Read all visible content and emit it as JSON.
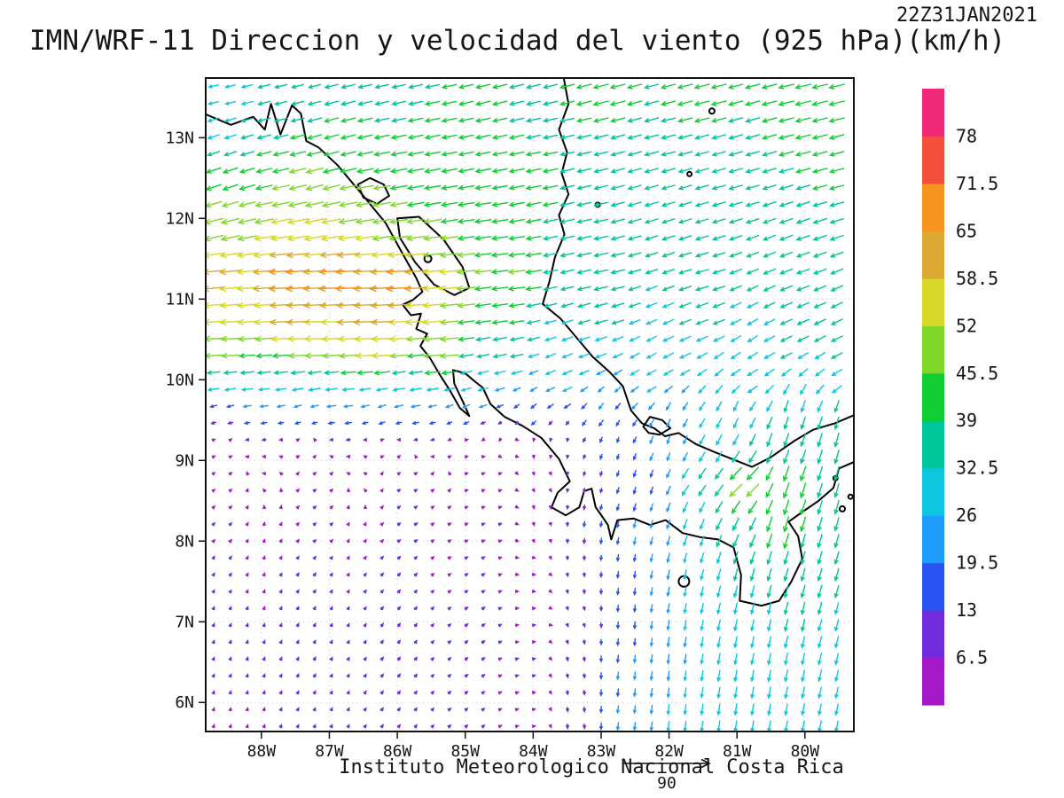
{
  "header": {
    "title": "IMN/WRF-11 Direccion y velocidad del viento (925 hPa)(km/h)",
    "date": "22Z31JAN2021"
  },
  "footer": {
    "caption": "Instituto Meteorologico Nacional Costa Rica",
    "reference_value": "90"
  },
  "chart_data": {
    "type": "vector_field_map",
    "title": "IMN/WRF-11 Direccion y velocidad del viento (925 hPa)(km/h)",
    "valid_time": "22Z31JAN2021",
    "units": "km/h",
    "pressure_level": "925 hPa",
    "reference_vector_kmh": 90,
    "lon_range": [
      -88.82,
      -79.28
    ],
    "lat_range": [
      5.64,
      13.74
    ],
    "x_axis": {
      "labels": [
        "88W",
        "87W",
        "86W",
        "85W",
        "84W",
        "83W",
        "82W",
        "81W",
        "80W"
      ],
      "values": [
        -88,
        -87,
        -86,
        -85,
        -84,
        -83,
        -82,
        -81,
        -80
      ]
    },
    "y_axis": {
      "labels": [
        "13N",
        "12N",
        "11N",
        "10N",
        "9N",
        "8N",
        "7N",
        "6N"
      ],
      "values": [
        13,
        12,
        11,
        10,
        9,
        8,
        7,
        6
      ]
    },
    "colorbar": {
      "levels": [
        6.5,
        13,
        19.5,
        26,
        32.5,
        39,
        45.5,
        52,
        58.5,
        65,
        71.5,
        78
      ],
      "labels": [
        "6.5",
        "13",
        "19.5",
        "26",
        "32.5",
        "39",
        "45.5",
        "52",
        "58.5",
        "65",
        "71.5",
        "78"
      ],
      "colors": [
        "#a41ac8",
        "#6f2bdc",
        "#2a52f0",
        "#1e9bff",
        "#0fc6e1",
        "#00c49a",
        "#0fcd32",
        "#7fd72a",
        "#d8d82b",
        "#dcaa33",
        "#f5941e",
        "#f5503c",
        "#f02878"
      ]
    },
    "wind_points": [
      [
        -88.6,
        13.6,
        -26,
        -6
      ],
      [
        -87.5,
        13.6,
        -32,
        -8
      ],
      [
        -86,
        13.6,
        -36,
        -8
      ],
      [
        -84.5,
        13.6,
        -38,
        -9
      ],
      [
        -83,
        13.6,
        -40,
        -10
      ],
      [
        -81.5,
        13.6,
        -40,
        -10
      ],
      [
        -80,
        13.6,
        -42,
        -10
      ],
      [
        -79.3,
        13.6,
        -42,
        -10
      ],
      [
        -88.6,
        13,
        -30,
        -10
      ],
      [
        -87,
        13,
        -38,
        -10
      ],
      [
        -85.5,
        13,
        -40,
        -8
      ],
      [
        -83.5,
        13,
        -38,
        -8
      ],
      [
        -82,
        13,
        -38,
        -9
      ],
      [
        -80,
        13,
        -40,
        -10
      ],
      [
        -88.6,
        12.4,
        -40,
        -14
      ],
      [
        -87.2,
        12.4,
        -46,
        -12
      ],
      [
        -85.8,
        12.4,
        -44,
        -8
      ],
      [
        -84,
        12.4,
        -40,
        -8
      ],
      [
        -82.5,
        12.4,
        -36,
        -10
      ],
      [
        -81,
        12.4,
        -36,
        -10
      ],
      [
        -79.6,
        12.4,
        -38,
        -10
      ],
      [
        -88.6,
        11.9,
        -50,
        -12
      ],
      [
        -87.3,
        11.9,
        -55,
        -10
      ],
      [
        -86.2,
        11.9,
        -50,
        -8
      ],
      [
        -84.8,
        11.9,
        -44,
        -6
      ],
      [
        -83.2,
        11.9,
        -38,
        -8
      ],
      [
        -81.5,
        11.9,
        -34,
        -10
      ],
      [
        -79.8,
        11.9,
        -36,
        -12
      ],
      [
        -88.6,
        11.3,
        -60,
        -6
      ],
      [
        -87.6,
        11.25,
        -68,
        -4
      ],
      [
        -86.8,
        11.2,
        -73,
        -3
      ],
      [
        -86,
        11.2,
        -70,
        -4
      ],
      [
        -85.2,
        11.25,
        -55,
        -5
      ],
      [
        -84.3,
        11.3,
        -46,
        -5
      ],
      [
        -83,
        11.3,
        -38,
        -8
      ],
      [
        -81.5,
        11.3,
        -34,
        -10
      ],
      [
        -80,
        11.3,
        -34,
        -12
      ],
      [
        -88.6,
        10.8,
        -58,
        -4
      ],
      [
        -87.5,
        10.8,
        -62,
        -3
      ],
      [
        -86.5,
        10.75,
        -64,
        -3
      ],
      [
        -85.6,
        10.75,
        -55,
        -4
      ],
      [
        -84.5,
        10.8,
        -42,
        -6
      ],
      [
        -83,
        10.8,
        -34,
        -9
      ],
      [
        -81.5,
        10.8,
        -32,
        -12
      ],
      [
        -80,
        10.8,
        -32,
        -13
      ],
      [
        -88.6,
        10.4,
        -52,
        -2
      ],
      [
        -87.3,
        10.4,
        -56,
        -1
      ],
      [
        -86.2,
        10.35,
        -58,
        -2
      ],
      [
        -85.3,
        10.35,
        -52,
        -4
      ],
      [
        -84.4,
        10.4,
        -36,
        -7
      ],
      [
        -83.2,
        10.4,
        -30,
        -10
      ],
      [
        -81.8,
        10.4,
        -30,
        -13
      ],
      [
        -80.3,
        10.4,
        -30,
        -14
      ],
      [
        -79.4,
        10.4,
        -30,
        -14
      ],
      [
        -88.6,
        10,
        -32,
        -4
      ],
      [
        -87.3,
        10,
        -33,
        -5
      ],
      [
        -86,
        10,
        -32,
        -6
      ],
      [
        -84.8,
        10,
        -28,
        -8
      ],
      [
        -83.6,
        10,
        -26,
        -11
      ],
      [
        -82.2,
        10,
        -26,
        -14
      ],
      [
        -80.8,
        10,
        -28,
        -16
      ],
      [
        -79.5,
        10,
        -28,
        -16
      ],
      [
        -88.6,
        9.6,
        -16,
        -5
      ],
      [
        -87.4,
        9.6,
        -18,
        -6
      ],
      [
        -86.2,
        9.6,
        -20,
        -7
      ],
      [
        -85,
        9.6,
        -18,
        -9
      ],
      [
        -84,
        9.6,
        -14,
        -12
      ],
      [
        -83,
        9.6,
        -12,
        -16
      ],
      [
        -82,
        9.6,
        -10,
        -20
      ],
      [
        -81,
        9.6,
        -10,
        -26
      ],
      [
        -80.2,
        9.6,
        -8,
        -32
      ],
      [
        -79.5,
        9.6,
        -8,
        -33
      ],
      [
        -88.6,
        9.2,
        4,
        1
      ],
      [
        -87.4,
        9.2,
        5,
        2
      ],
      [
        -86.2,
        9.2,
        6,
        2
      ],
      [
        -85,
        9.2,
        6,
        2
      ],
      [
        -84.2,
        9.2,
        5,
        0
      ],
      [
        -83.6,
        9.2,
        0,
        -6
      ],
      [
        -82.8,
        9.2,
        -3,
        -13
      ],
      [
        -82,
        9.2,
        -6,
        -20
      ],
      [
        -81.2,
        9.2,
        -14,
        -28
      ],
      [
        -80.4,
        9.2,
        -12,
        -36
      ],
      [
        -79.6,
        9.2,
        -10,
        -38
      ],
      [
        -88.6,
        8.7,
        5,
        3
      ],
      [
        -87.2,
        8.7,
        6,
        4
      ],
      [
        -85.8,
        8.7,
        7,
        4
      ],
      [
        -84.6,
        8.7,
        7,
        3
      ],
      [
        -83.8,
        8.7,
        3,
        -3
      ],
      [
        -83.2,
        8.7,
        -2,
        -10
      ],
      [
        -82.4,
        8.7,
        -5,
        -18
      ],
      [
        -81.6,
        8.7,
        -20,
        -28
      ],
      [
        -80.9,
        8.7,
        -38,
        -34
      ],
      [
        -80.2,
        8.7,
        -14,
        -42
      ],
      [
        -79.5,
        8.7,
        -10,
        -38
      ],
      [
        -88.6,
        8.2,
        5,
        5
      ],
      [
        -87.2,
        8.2,
        6,
        5
      ],
      [
        -85.8,
        8.2,
        8,
        5
      ],
      [
        -84.6,
        8.2,
        7,
        3
      ],
      [
        -83.8,
        8.2,
        2,
        -6
      ],
      [
        -83.2,
        8.2,
        -2,
        -14
      ],
      [
        -82.5,
        8.2,
        -4,
        -20
      ],
      [
        -81.7,
        8.2,
        -8,
        -26
      ],
      [
        -81,
        8.2,
        -16,
        -34
      ],
      [
        -80.3,
        8.2,
        -12,
        -42
      ],
      [
        -79.5,
        8.2,
        -10,
        -36
      ],
      [
        -88.6,
        7.6,
        4,
        6
      ],
      [
        -87.3,
        7.6,
        5,
        7
      ],
      [
        -86,
        7.6,
        7,
        7
      ],
      [
        -84.8,
        7.6,
        8,
        5
      ],
      [
        -84,
        7.6,
        6,
        0
      ],
      [
        -83.3,
        7.6,
        1,
        -10
      ],
      [
        -82.6,
        7.6,
        -2,
        -18
      ],
      [
        -81.8,
        7.6,
        -5,
        -26
      ],
      [
        -81,
        7.6,
        -8,
        -32
      ],
      [
        -80.2,
        7.6,
        -9,
        -34
      ],
      [
        -79.4,
        7.6,
        -9,
        -33
      ],
      [
        -88.6,
        7,
        3,
        7
      ],
      [
        -87.3,
        7,
        4,
        8
      ],
      [
        -86,
        7,
        6,
        8
      ],
      [
        -84.8,
        7,
        8,
        6
      ],
      [
        -84,
        7,
        7,
        2
      ],
      [
        -83.3,
        7,
        3,
        -8
      ],
      [
        -82.6,
        7,
        -1,
        -18
      ],
      [
        -81.8,
        7,
        -4,
        -26
      ],
      [
        -81,
        7,
        -6,
        -30
      ],
      [
        -80.2,
        7,
        -7,
        -32
      ],
      [
        -79.4,
        7,
        -8,
        -31
      ],
      [
        -88.6,
        6.4,
        3,
        7
      ],
      [
        -87.3,
        6.4,
        4,
        8
      ],
      [
        -86,
        6.4,
        6,
        8
      ],
      [
        -84.9,
        6.4,
        7,
        6
      ],
      [
        -84.1,
        6.4,
        7,
        3
      ],
      [
        -83.4,
        6.4,
        2,
        -10
      ],
      [
        -82.7,
        6.4,
        -2,
        -20
      ],
      [
        -81.9,
        6.4,
        -3,
        -26
      ],
      [
        -81.1,
        6.4,
        -5,
        -30
      ],
      [
        -80.3,
        6.4,
        -6,
        -31
      ],
      [
        -79.4,
        6.4,
        -7,
        -30
      ],
      [
        -88.6,
        5.8,
        2,
        6
      ],
      [
        -87.3,
        5.8,
        3,
        7
      ],
      [
        -86,
        5.8,
        5,
        7
      ],
      [
        -84.9,
        5.8,
        6,
        5
      ],
      [
        -84.1,
        5.8,
        6,
        2
      ],
      [
        -83.4,
        5.8,
        1,
        -12
      ],
      [
        -82.7,
        5.8,
        -2,
        -20
      ],
      [
        -81.9,
        5.8,
        -3,
        -27
      ],
      [
        -81.1,
        5.8,
        -4,
        -30
      ],
      [
        -80.3,
        5.8,
        -5,
        -30
      ],
      [
        -79.4,
        5.8,
        -6,
        -29
      ]
    ],
    "coastlines": [
      [
        [
          -88.85,
          13.3
        ],
        [
          -88.45,
          13.16
        ],
        [
          -88.12,
          13.26
        ],
        [
          -87.95,
          13.1
        ],
        [
          -87.86,
          13.42
        ],
        [
          -87.72,
          13.04
        ],
        [
          -87.55,
          13.4
        ],
        [
          -87.42,
          13.3
        ],
        [
          -87.34,
          12.96
        ],
        [
          -87.16,
          12.88
        ],
        [
          -86.88,
          12.66
        ],
        [
          -86.52,
          12.3
        ],
        [
          -86.17,
          11.94
        ],
        [
          -85.92,
          11.56
        ],
        [
          -85.72,
          11.26
        ],
        [
          -85.63,
          11.09
        ],
        [
          -85.77,
          10.99
        ],
        [
          -85.92,
          10.93
        ],
        [
          -85.8,
          10.8
        ],
        [
          -85.65,
          10.82
        ],
        [
          -85.72,
          10.63
        ],
        [
          -85.56,
          10.57
        ],
        [
          -85.66,
          10.42
        ],
        [
          -85.52,
          10.27
        ],
        [
          -85.38,
          10.07
        ],
        [
          -85.22,
          9.86
        ],
        [
          -85.08,
          9.65
        ],
        [
          -84.94,
          9.55
        ],
        [
          -85.03,
          9.72
        ],
        [
          -85.16,
          9.95
        ],
        [
          -85.18,
          10.12
        ],
        [
          -85.0,
          10.08
        ],
        [
          -84.86,
          9.98
        ],
        [
          -84.74,
          9.9
        ],
        [
          -84.63,
          9.7
        ],
        [
          -84.42,
          9.54
        ],
        [
          -84.16,
          9.43
        ],
        [
          -83.88,
          9.28
        ],
        [
          -83.62,
          9.02
        ],
        [
          -83.46,
          8.74
        ],
        [
          -83.64,
          8.6
        ],
        [
          -83.73,
          8.42
        ],
        [
          -83.52,
          8.32
        ],
        [
          -83.32,
          8.42
        ],
        [
          -83.25,
          8.62
        ],
        [
          -83.14,
          8.65
        ],
        [
          -83.08,
          8.42
        ],
        [
          -82.98,
          8.3
        ],
        [
          -82.9,
          8.2
        ],
        [
          -82.85,
          8.02
        ],
        [
          -82.76,
          8.26
        ],
        [
          -82.52,
          8.28
        ],
        [
          -82.28,
          8.2
        ],
        [
          -82.05,
          8.26
        ],
        [
          -81.8,
          8.1
        ],
        [
          -81.55,
          8.05
        ],
        [
          -81.28,
          8.02
        ],
        [
          -81.05,
          7.92
        ],
        [
          -80.94,
          7.58
        ],
        [
          -80.96,
          7.26
        ],
        [
          -80.64,
          7.2
        ],
        [
          -80.38,
          7.26
        ],
        [
          -80.2,
          7.5
        ],
        [
          -80.04,
          7.78
        ],
        [
          -80.1,
          8.06
        ],
        [
          -80.24,
          8.24
        ],
        [
          -80.04,
          8.36
        ],
        [
          -79.8,
          8.5
        ],
        [
          -79.58,
          8.66
        ],
        [
          -79.5,
          8.9
        ],
        [
          -79.28,
          8.98
        ]
      ],
      [
        [
          -83.55,
          13.74
        ],
        [
          -83.48,
          13.42
        ],
        [
          -83.62,
          13.1
        ],
        [
          -83.5,
          12.82
        ],
        [
          -83.58,
          12.56
        ],
        [
          -83.48,
          12.3
        ],
        [
          -83.62,
          12.04
        ],
        [
          -83.54,
          11.8
        ],
        [
          -83.68,
          11.52
        ],
        [
          -83.76,
          11.22
        ],
        [
          -83.86,
          10.94
        ],
        [
          -83.6,
          10.76
        ],
        [
          -83.36,
          10.52
        ],
        [
          -83.12,
          10.28
        ],
        [
          -82.88,
          10.1
        ],
        [
          -82.68,
          9.92
        ],
        [
          -82.56,
          9.62
        ],
        [
          -82.4,
          9.46
        ],
        [
          -82.22,
          9.4
        ],
        [
          -82.06,
          9.3
        ],
        [
          -81.86,
          9.34
        ],
        [
          -81.6,
          9.2
        ],
        [
          -81.32,
          9.1
        ],
        [
          -81.02,
          9.0
        ],
        [
          -80.78,
          8.92
        ],
        [
          -80.5,
          9.04
        ],
        [
          -80.16,
          9.24
        ],
        [
          -79.88,
          9.38
        ],
        [
          -79.56,
          9.46
        ],
        [
          -79.28,
          9.56
        ]
      ]
    ],
    "lakes": [
      [
        [
          -86.58,
          12.42
        ],
        [
          -86.4,
          12.5
        ],
        [
          -86.2,
          12.42
        ],
        [
          -86.12,
          12.28
        ],
        [
          -86.3,
          12.18
        ],
        [
          -86.5,
          12.26
        ],
        [
          -86.58,
          12.42
        ]
      ],
      [
        [
          -86.0,
          12.0
        ],
        [
          -85.68,
          12.02
        ],
        [
          -85.32,
          11.74
        ],
        [
          -85.04,
          11.4
        ],
        [
          -84.94,
          11.14
        ],
        [
          -85.16,
          11.05
        ],
        [
          -85.46,
          11.18
        ],
        [
          -85.74,
          11.46
        ],
        [
          -85.96,
          11.76
        ],
        [
          -86.0,
          12.0
        ]
      ],
      [
        [
          -82.38,
          9.42
        ],
        [
          -82.28,
          9.54
        ],
        [
          -82.1,
          9.5
        ],
        [
          -81.98,
          9.4
        ],
        [
          -82.14,
          9.32
        ],
        [
          -82.3,
          9.34
        ],
        [
          -82.38,
          9.42
        ]
      ]
    ],
    "islands": [
      [
        -81.37,
        13.33,
        3
      ],
      [
        -81.7,
        12.55,
        2.5
      ],
      [
        -83.05,
        12.17,
        2.5
      ],
      [
        -85.55,
        11.5,
        4
      ],
      [
        -81.78,
        7.5,
        6
      ],
      [
        -79.55,
        8.78,
        2.5
      ],
      [
        -79.45,
        8.4,
        3
      ],
      [
        -79.33,
        8.55,
        2.5
      ]
    ]
  }
}
